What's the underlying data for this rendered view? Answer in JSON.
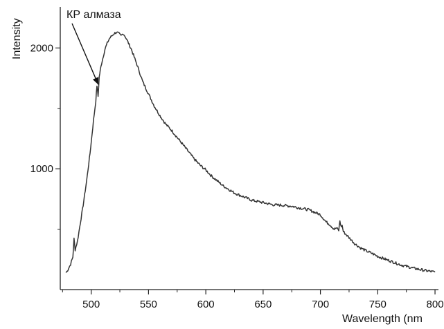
{
  "chart_data": {
    "type": "line",
    "title": "",
    "xlabel": "Wavelength (nm",
    "ylabel": "Intensity",
    "xlim": [
      473,
      803
    ],
    "ylim": [
      0,
      2340
    ],
    "x_ticks": [
      500,
      550,
      600,
      650,
      700,
      750,
      800
    ],
    "x_tick_labels": [
      "500",
      "550",
      "600",
      "650",
      "700",
      "750",
      "800"
    ],
    "y_ticks": [
      1000,
      2000
    ],
    "y_tick_labels": [
      "1000",
      "2000"
    ],
    "grid": false,
    "legend": "none",
    "line_color": "#333333",
    "annotations": [
      {
        "text": "КР алмаза",
        "x": 505,
        "y": 1720
      }
    ],
    "series": [
      {
        "x": [
          478,
          480,
          482,
          484,
          485,
          486,
          488,
          490,
          493,
          496,
          499,
          502,
          504,
          505,
          506,
          507,
          508,
          509,
          510,
          512,
          514,
          516,
          518,
          520,
          522,
          524,
          526,
          528,
          530,
          532,
          535,
          540,
          545,
          550,
          555,
          560,
          565,
          570,
          575,
          580,
          585,
          590,
          595,
          600,
          605,
          610,
          615,
          620,
          625,
          630,
          635,
          640,
          645,
          650,
          655,
          660,
          665,
          670,
          675,
          680,
          685,
          690,
          695,
          700,
          705,
          708,
          712,
          714,
          716,
          717,
          718,
          719,
          720,
          722,
          725,
          730,
          735,
          740,
          745,
          750,
          760,
          770,
          780,
          790,
          800
        ],
        "y": [
          140,
          170,
          210,
          270,
          420,
          330,
          400,
          520,
          700,
          900,
          1130,
          1400,
          1560,
          1690,
          1600,
          1760,
          1820,
          1870,
          1910,
          1990,
          2040,
          2080,
          2100,
          2120,
          2130,
          2120,
          2100,
          2120,
          2090,
          2050,
          1990,
          1860,
          1720,
          1620,
          1520,
          1440,
          1370,
          1320,
          1260,
          1200,
          1140,
          1080,
          1030,
          990,
          940,
          900,
          860,
          830,
          800,
          780,
          760,
          740,
          730,
          720,
          710,
          700,
          700,
          695,
          690,
          680,
          670,
          660,
          640,
          620,
          560,
          540,
          500,
          510,
          490,
          570,
          520,
          530,
          480,
          460,
          430,
          380,
          345,
          320,
          300,
          275,
          240,
          205,
          180,
          160,
          145
        ]
      }
    ]
  }
}
